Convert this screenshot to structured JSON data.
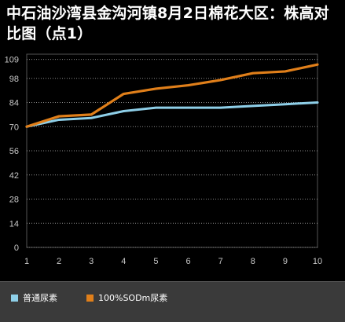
{
  "chart_data": {
    "type": "line",
    "title": "中石油沙湾县金沟河镇8月2日棉花大区：株高对比图（点1）",
    "x": [
      1,
      2,
      3,
      4,
      5,
      6,
      7,
      8,
      9,
      10
    ],
    "x_tick_labels": [
      "1",
      "2",
      "3",
      "4",
      "5",
      "6",
      "7",
      "8",
      "9",
      "10"
    ],
    "y_ticks": [
      0,
      14,
      28,
      42,
      56,
      70,
      84,
      98,
      109
    ],
    "y_tick_labels": [
      "0",
      "14",
      "28",
      "42",
      "56",
      "70",
      "84",
      "98",
      "109"
    ],
    "ylim": [
      0,
      112
    ],
    "grid": "horizontal dotted",
    "legend_position": "bottom",
    "series": [
      {
        "name": "普通尿素",
        "color": "#8ecfe8",
        "values": [
          70,
          74,
          75,
          79,
          81,
          81,
          81,
          82,
          83,
          84
        ]
      },
      {
        "name": "100%SODm尿素",
        "color": "#e07f1a",
        "values": [
          70,
          76,
          77,
          89,
          92,
          94,
          97,
          101,
          102,
          106
        ]
      }
    ]
  }
}
